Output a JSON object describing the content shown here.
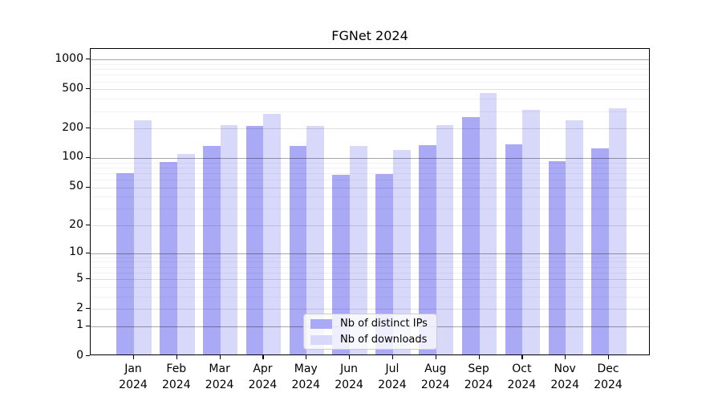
{
  "title": "FGNet 2024",
  "chart_data": {
    "type": "bar",
    "title": "FGNet 2024",
    "categories": [
      "Jan",
      "Feb",
      "Mar",
      "Apr",
      "May",
      "Jun",
      "Jul",
      "Aug",
      "Sep",
      "Oct",
      "Nov",
      "Dec"
    ],
    "x_tick_year": "2024",
    "series": [
      {
        "key": "distinct-ips",
        "name": "Nb of distinct IPs",
        "color": "#a9a9f6",
        "values": [
          67,
          88,
          128,
          206,
          128,
          65,
          66,
          129,
          250,
          133,
          90,
          121
        ]
      },
      {
        "key": "downloads",
        "name": "Nb of downloads",
        "color": "#d8d8fa",
        "values": [
          231,
          105,
          207,
          272,
          205,
          128,
          116,
          210,
          440,
          300,
          231,
          306
        ]
      }
    ],
    "xlabel": "",
    "ylabel": "",
    "yscale": "log1p",
    "ylim": [
      0,
      1280
    ],
    "ytick_values": [
      0,
      1,
      2,
      5,
      10,
      20,
      50,
      100,
      200,
      500,
      1000
    ],
    "ytick_labels": [
      "0",
      "1",
      "2",
      "5",
      "10",
      "20",
      "50",
      "100",
      "200",
      "500",
      "1000"
    ],
    "major_tick_values": [
      1,
      10,
      100,
      1000
    ],
    "minor_tick_multipliers": [
      3,
      4,
      6,
      7,
      8,
      9
    ],
    "grid": true,
    "legend_position": "lower-center",
    "grid_color_major": "rgba(0,0,0,0.35)",
    "grid_color_labeled": "rgba(0,0,0,0.12)",
    "grid_color_minor": "rgba(0,0,0,0.05)"
  }
}
